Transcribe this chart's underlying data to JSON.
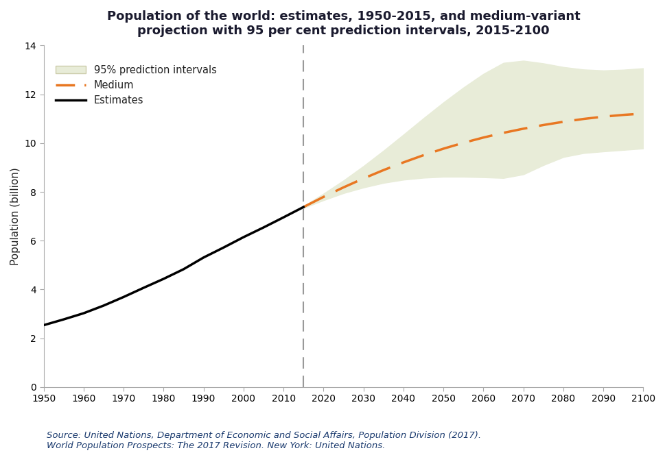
{
  "title_line1": "Population of the world: estimates, 1950-2015, and medium-variant",
  "title_line2": "projection with 95 per cent prediction intervals, 2015-2100",
  "ylabel": "Population (billion)",
  "ylim": [
    0,
    14
  ],
  "yticks": [
    0,
    2,
    4,
    6,
    8,
    10,
    12,
    14
  ],
  "xlim": [
    1950,
    2100
  ],
  "xticks": [
    1950,
    1960,
    1970,
    1980,
    1990,
    2000,
    2010,
    2020,
    2030,
    2040,
    2050,
    2060,
    2070,
    2080,
    2090,
    2100
  ],
  "divider_year": 2015,
  "estimates_years": [
    1950,
    1955,
    1960,
    1965,
    1970,
    1975,
    1980,
    1985,
    1990,
    1995,
    2000,
    2005,
    2010,
    2015
  ],
  "estimates_values": [
    2.536,
    2.773,
    3.026,
    3.339,
    3.692,
    4.068,
    4.435,
    4.831,
    5.31,
    5.719,
    6.145,
    6.542,
    6.957,
    7.38
  ],
  "medium_years": [
    2015,
    2020,
    2025,
    2030,
    2035,
    2040,
    2045,
    2050,
    2055,
    2060,
    2065,
    2070,
    2075,
    2080,
    2085,
    2090,
    2095,
    2100
  ],
  "medium_values": [
    7.38,
    7.795,
    8.185,
    8.551,
    8.893,
    9.21,
    9.504,
    9.772,
    10.013,
    10.229,
    10.421,
    10.591,
    10.742,
    10.875,
    10.99,
    11.085,
    11.157,
    11.213
  ],
  "upper_values": [
    7.42,
    7.93,
    8.47,
    9.06,
    9.69,
    10.35,
    11.02,
    11.67,
    12.28,
    12.84,
    13.29,
    13.38,
    13.27,
    13.12,
    13.02,
    12.98,
    13.01,
    13.07
  ],
  "lower_values": [
    7.34,
    7.66,
    7.95,
    8.18,
    8.37,
    8.5,
    8.58,
    8.62,
    8.62,
    8.6,
    8.57,
    8.72,
    9.1,
    9.43,
    9.59,
    9.66,
    9.72,
    9.78
  ],
  "estimates_color": "#000000",
  "medium_color": "#E87722",
  "interval_color": "#e8ecd8",
  "dashed_line_color": "#999999",
  "source_line1": "Source: United Nations, Department of Economic and Social Affairs, Population Division (2017).",
  "source_line2": "World Population Prospects: The 2017 Revision. New York: United Nations.",
  "background_color": "#ffffff",
  "title_fontsize": 13,
  "axis_label_fontsize": 11,
  "tick_fontsize": 10,
  "source_fontsize": 9.5
}
